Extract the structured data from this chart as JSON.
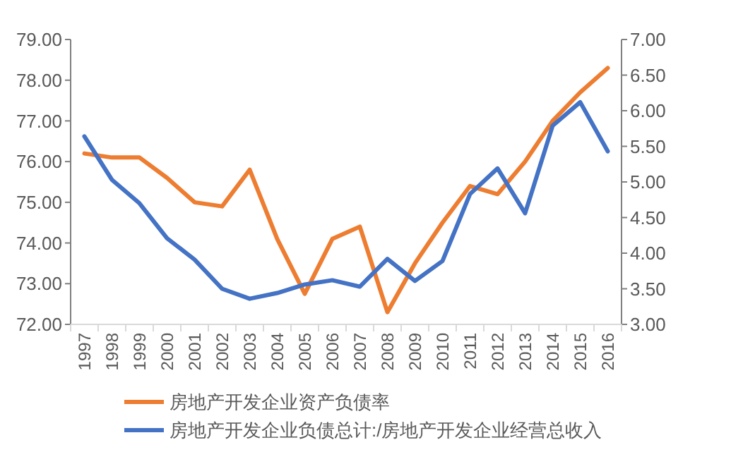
{
  "chart_data": {
    "type": "line",
    "categories": [
      "1997",
      "1998",
      "1999",
      "2000",
      "2001",
      "2002",
      "2003",
      "2004",
      "2005",
      "2006",
      "2007",
      "2008",
      "2009",
      "2010",
      "2011",
      "2012",
      "2013",
      "2014",
      "2015",
      "2016"
    ],
    "series": [
      {
        "name": "房地产开发企业资产负债率",
        "color": "#ed7d31",
        "values": [
          76.2,
          76.1,
          76.1,
          75.6,
          75.0,
          74.9,
          75.8,
          74.1,
          72.75,
          74.1,
          74.4,
          72.3,
          73.5,
          74.5,
          75.4,
          75.2,
          76.0,
          77.0,
          77.7,
          78.3
        ]
      },
      {
        "name": "房地产开发企业负债总计:/房地产开发企业经营总收入",
        "color": "#4472c4",
        "axis": "y2",
        "values": [
          5.64,
          5.03,
          4.7,
          4.21,
          3.91,
          3.5,
          3.36,
          3.44,
          3.56,
          3.62,
          3.53,
          3.92,
          3.61,
          3.89,
          4.83,
          5.19,
          4.56,
          5.79,
          6.12,
          5.43
        ]
      }
    ],
    "ylim": [
      72,
      79
    ],
    "yticks": [
      {
        "value": 72,
        "label": "72.00"
      },
      {
        "value": 73,
        "label": "73.00"
      },
      {
        "value": 74,
        "label": "74.00"
      },
      {
        "value": 75,
        "label": "75.00"
      },
      {
        "value": 76,
        "label": "76.00"
      },
      {
        "value": 77,
        "label": "77.00"
      },
      {
        "value": 78,
        "label": "78.00"
      },
      {
        "value": 79,
        "label": "79.00"
      }
    ],
    "y2lim": [
      3,
      7
    ],
    "y2ticks": [
      {
        "value": 3,
        "label": "3.00"
      },
      {
        "value": 3.5,
        "label": "3.50"
      },
      {
        "value": 4,
        "label": "4.00"
      },
      {
        "value": 4.5,
        "label": "4.50"
      },
      {
        "value": 5,
        "label": "5.00"
      },
      {
        "value": 5.5,
        "label": "5.50"
      },
      {
        "value": 6,
        "label": "6.00"
      },
      {
        "value": 6.5,
        "label": "6.50"
      },
      {
        "value": 7,
        "label": "7.00"
      }
    ],
    "legend": "bottom",
    "grid": false,
    "marker": "none",
    "line_style": "solid"
  }
}
